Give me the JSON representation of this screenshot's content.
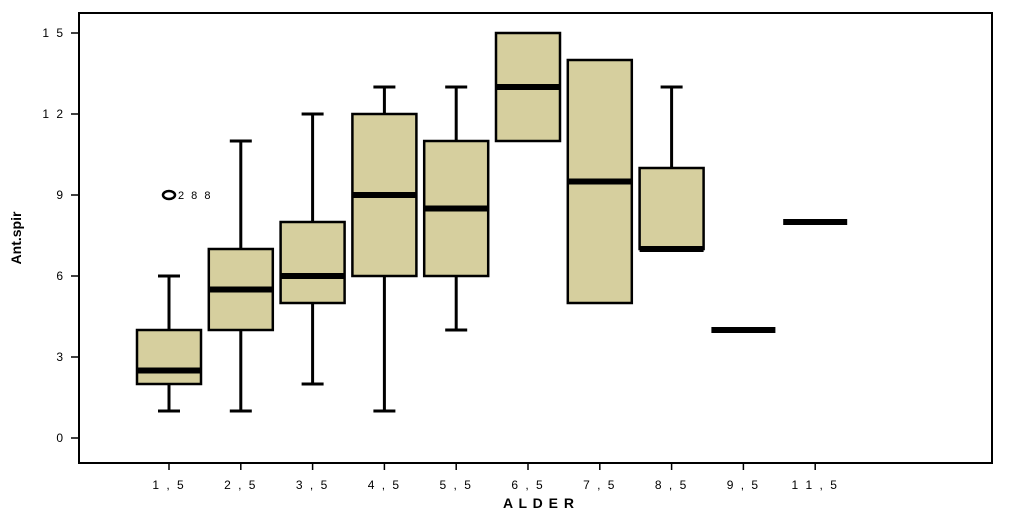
{
  "chart_data": {
    "type": "box",
    "xlabel": "A L D E R",
    "ylabel": "Ant.spir",
    "ylim": [
      -1,
      16
    ],
    "yticks": [
      0,
      3,
      6,
      9,
      12,
      15
    ],
    "ytick_labels": [
      "0",
      "3",
      "6",
      "9",
      "1 2",
      "1 5"
    ],
    "grid": false,
    "box_color": "#d6cf9e",
    "line_color": "#000000",
    "categories": [
      "1 , 5",
      "2 , 5",
      "3 , 5",
      "4 , 5",
      "5 , 5",
      "6 , 5",
      "7 , 5",
      "8 , 5",
      "9 , 5",
      "1 1 , 5"
    ],
    "boxes": [
      {
        "min": 1,
        "q1": 2,
        "median": 2.5,
        "q3": 4,
        "max": 6
      },
      {
        "min": 1,
        "q1": 4,
        "median": 5.5,
        "q3": 7,
        "max": 11
      },
      {
        "min": 2,
        "q1": 5,
        "median": 6,
        "q3": 8,
        "max": 12
      },
      {
        "min": 1,
        "q1": 6,
        "median": 9,
        "q3": 12,
        "max": 13
      },
      {
        "min": 4,
        "q1": 6,
        "median": 8.5,
        "q3": 11,
        "max": 13
      },
      {
        "min": 11,
        "q1": 11,
        "median": 13,
        "q3": 15,
        "max": 15
      },
      {
        "min": 5,
        "q1": 5,
        "median": 9.5,
        "q3": 14,
        "max": 14
      },
      {
        "min": 7,
        "q1": 7,
        "median": 7,
        "q3": 10,
        "max": 13
      },
      {
        "min": 4,
        "q1": 4,
        "median": 4,
        "q3": 4,
        "max": 4
      },
      {
        "min": 8,
        "q1": 8,
        "median": 8,
        "q3": 8,
        "max": 8
      }
    ],
    "outliers": [
      {
        "category_index": 0,
        "value": 9,
        "label": "2 8 8"
      }
    ]
  }
}
